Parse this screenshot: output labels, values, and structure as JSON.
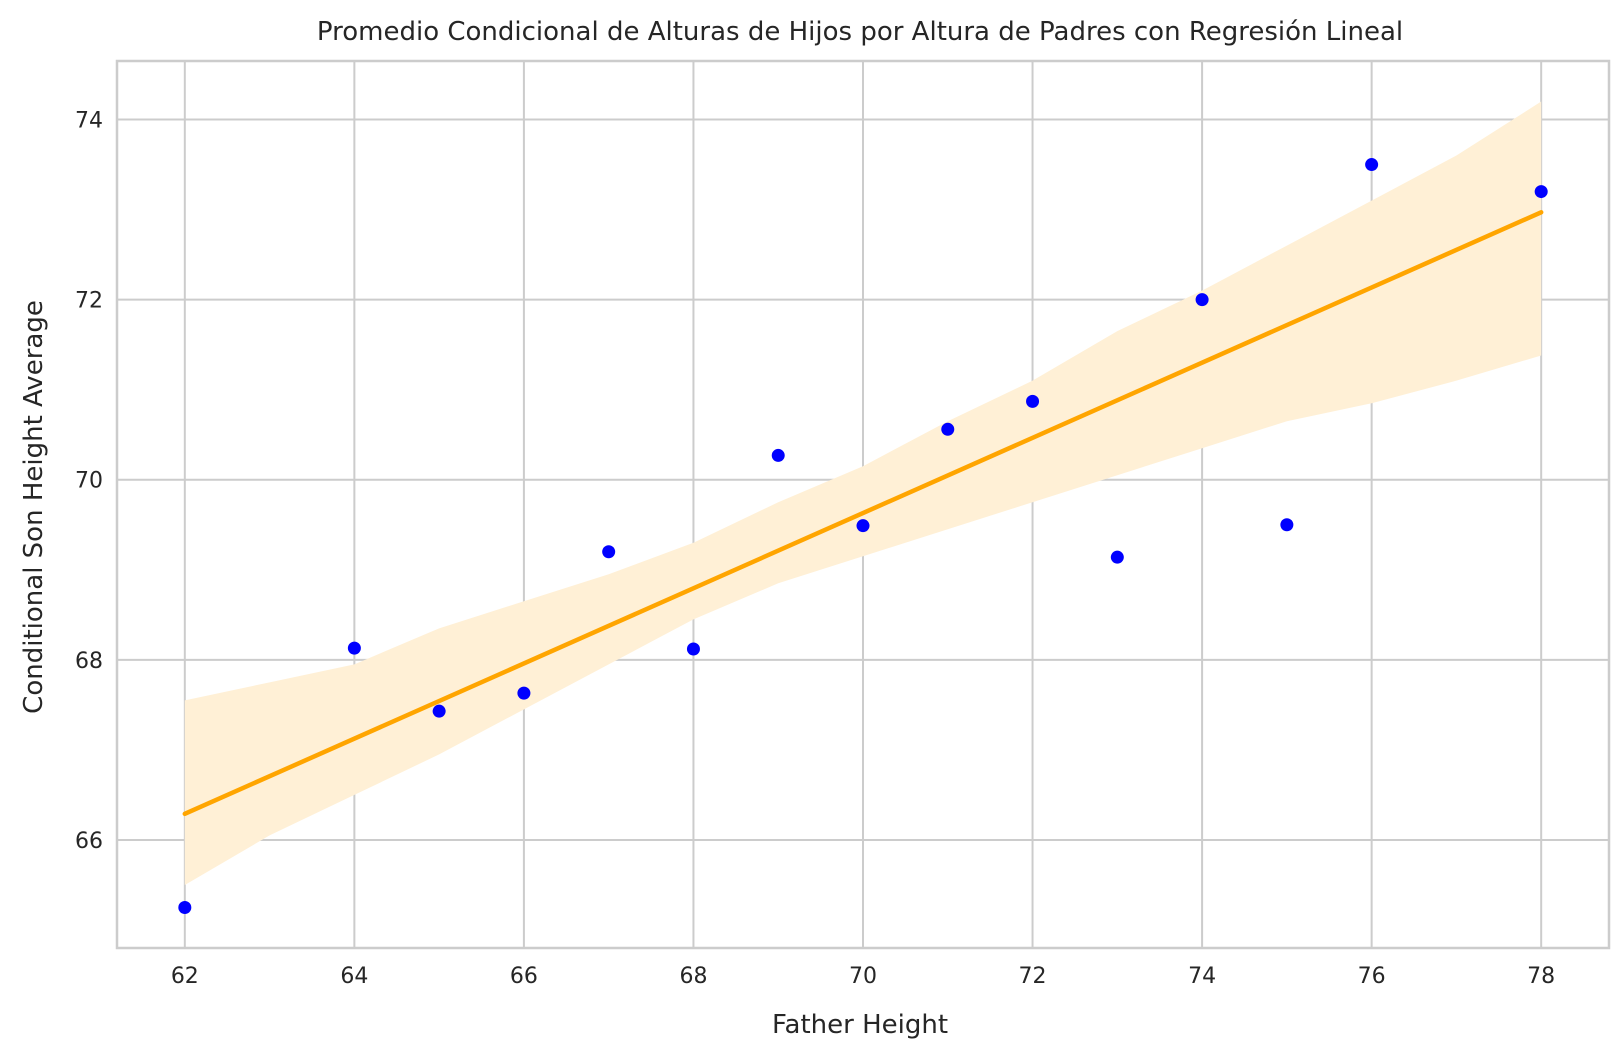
{
  "chart_data": {
    "type": "scatter",
    "title": "Promedio Condicional de Alturas de Hijos por Altura de Padres con Regresión Lineal",
    "xlabel": "Father Height",
    "ylabel": "Conditional Son Height Average",
    "xlim": [
      61.2,
      78.8
    ],
    "ylim": [
      64.8,
      74.65
    ],
    "x_ticks": [
      "62",
      "64",
      "66",
      "68",
      "70",
      "72",
      "74",
      "76",
      "78"
    ],
    "y_ticks": [
      "66",
      "68",
      "70",
      "72",
      "74"
    ],
    "grid": true,
    "legend": "none",
    "points": {
      "x": [
        62,
        64,
        65,
        66,
        67,
        68,
        69,
        70,
        71,
        72,
        73,
        74,
        75,
        76,
        78
      ],
      "y": [
        65.25,
        68.13,
        67.43,
        67.63,
        69.2,
        68.12,
        70.27,
        69.49,
        70.56,
        70.87,
        69.14,
        72.0,
        69.5,
        73.5,
        73.2
      ],
      "color": "#0000ff"
    },
    "regression": {
      "x_range": [
        62,
        78
      ],
      "y_range": [
        66.29,
        72.97
      ],
      "color": "#ffa500",
      "ci_band": {
        "x": [
          62,
          63,
          64,
          65,
          66,
          67,
          68,
          69,
          70,
          71,
          72,
          73,
          74,
          75,
          76,
          77,
          78
        ],
        "lower": [
          65.5,
          66.05,
          66.5,
          66.95,
          67.45,
          67.95,
          68.45,
          68.85,
          69.15,
          69.45,
          69.75,
          70.05,
          70.35,
          70.65,
          70.85,
          71.1,
          71.38
        ],
        "upper": [
          67.55,
          67.75,
          67.95,
          68.35,
          68.65,
          68.95,
          69.3,
          69.75,
          70.15,
          70.65,
          71.1,
          71.65,
          72.1,
          72.6,
          73.1,
          73.6,
          74.2
        ],
        "color": "#fff0d6"
      }
    }
  }
}
